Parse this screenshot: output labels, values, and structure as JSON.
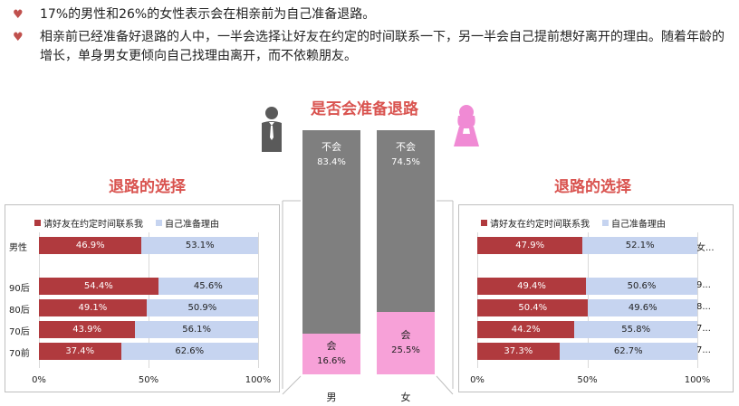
{
  "bullets": [
    "17%的男性和26%的女性表示会在相亲前为自己准备退路。",
    "相亲前已经准备好退路的人中，一半会选择让好友在约定的时间联系一下，另一半会自己提前想好离开的理由。随着年龄的增长，单身男女更倾向自己找理由离开，而不依赖朋友。"
  ],
  "colors": {
    "accent": "#d9534f",
    "friend": "#b03a3e",
    "self": "#c6d4f0",
    "no": "#7f7f7f",
    "yes": "#f7a1d8"
  },
  "icons": {
    "male": "man-icon",
    "female": "woman-icon",
    "bullet": "heart-icon"
  },
  "chart_data": [
    {
      "type": "bar",
      "orientation": "horizontal-stacked",
      "title": "退路的选择",
      "categories": [
        "男性",
        "",
        "90后",
        "80后",
        "70后",
        "70前"
      ],
      "series": [
        {
          "name": "请好友在约定时间联系我",
          "values": [
            46.9,
            null,
            54.4,
            49.1,
            43.9,
            37.4
          ],
          "labels": [
            "46.9%",
            "",
            "54.4%",
            "49.1%",
            "43.9%",
            "37.4%"
          ]
        },
        {
          "name": "自己准备理由",
          "values": [
            53.1,
            null,
            45.6,
            50.9,
            56.1,
            62.6
          ],
          "labels": [
            "53.1%",
            "",
            "45.6%",
            "50.9%",
            "56.1%",
            "62.6%"
          ]
        }
      ],
      "xticks": [
        "0%",
        "50%",
        "100%"
      ],
      "xlim": [
        0,
        100
      ],
      "legend": "top-left"
    },
    {
      "type": "bar",
      "orientation": "vertical-stacked",
      "title": "是否会准备退路",
      "categories": [
        "男",
        "女"
      ],
      "series": [
        {
          "name": "会",
          "values": [
            16.6,
            25.5
          ],
          "labels": [
            "16.6%",
            "25.5%"
          ]
        },
        {
          "name": "不会",
          "values": [
            83.4,
            74.5
          ],
          "labels": [
            "83.4%",
            "74.5%"
          ]
        }
      ]
    },
    {
      "type": "bar",
      "orientation": "horizontal-stacked",
      "title": "退路的选择",
      "categories": [
        "女...",
        "",
        "9...",
        "8...",
        "7...",
        "7..."
      ],
      "series": [
        {
          "name": "请好友在约定时间联系我",
          "values": [
            47.9,
            null,
            49.4,
            50.4,
            44.2,
            37.3
          ],
          "labels": [
            "47.9%",
            "",
            "49.4%",
            "50.4%",
            "44.2%",
            "37.3%"
          ]
        },
        {
          "name": "自己准备理由",
          "values": [
            52.1,
            null,
            50.6,
            49.6,
            55.8,
            62.7
          ],
          "labels": [
            "52.1%",
            "",
            "50.6%",
            "49.6%",
            "55.8%",
            "62.7%"
          ]
        }
      ],
      "xticks": [
        "0%",
        "50%",
        "100%"
      ],
      "xlim": [
        0,
        100
      ],
      "legend": "top-left"
    }
  ]
}
